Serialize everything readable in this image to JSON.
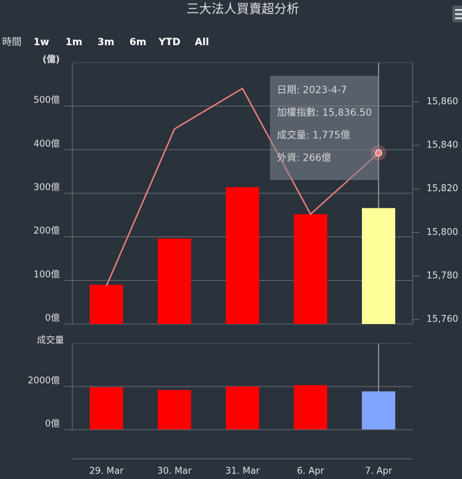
{
  "title": "三大法人買賣超分析",
  "range_selector": {
    "label": "時間",
    "buttons": [
      "1w",
      "1m",
      "3m",
      "6m",
      "YTD",
      "All"
    ]
  },
  "tooltip": {
    "lines": [
      "日期: 2023-4-7",
      "加權指數: 15,836.50",
      "成交量: 1,775億",
      "外資: 266億"
    ]
  },
  "chart_data": {
    "type": "stock",
    "categories": [
      "29. Mar",
      "30. Mar",
      "31. Mar",
      "6. Apr",
      "7. Apr"
    ],
    "panes": [
      {
        "y_title": "(億)",
        "ylim": [
          0,
          600
        ],
        "yticks": [
          {
            "value": 0,
            "label": "0億"
          },
          {
            "value": 100,
            "label": "100億"
          },
          {
            "value": 200,
            "label": "200億"
          },
          {
            "value": 300,
            "label": "300億"
          },
          {
            "value": 400,
            "label": "400億"
          },
          {
            "value": 500,
            "label": "500億"
          }
        ],
        "y2lim": [
          15758,
          15878
        ],
        "y2ticks": [
          {
            "value": 15760,
            "label": "15,760"
          },
          {
            "value": 15780,
            "label": "15,780"
          },
          {
            "value": 15800,
            "label": "15,800"
          },
          {
            "value": 15820,
            "label": "15,820"
          },
          {
            "value": 15840,
            "label": "15,840"
          },
          {
            "value": 15860,
            "label": "15,860"
          }
        ],
        "grid": true,
        "series": [
          {
            "type": "bar",
            "colors": [
              "#ff0000",
              "#ff0000",
              "#ff0000",
              "#ff0000",
              "#ffff99"
            ],
            "values": [
              90,
              196,
              314,
              252,
              266
            ]
          },
          {
            "type": "line",
            "axis": "y2",
            "color": "#f08080",
            "values": [
              15775.4,
              15847.5,
              15866.1,
              15808.4,
              15836.5
            ]
          }
        ]
      },
      {
        "y_title": "成交量",
        "ylim": [
          0,
          4000
        ],
        "yticks": [
          {
            "value": 0,
            "label": "0億"
          },
          {
            "value": 2000,
            "label": "2000億"
          }
        ],
        "grid": true,
        "series": [
          {
            "type": "bar",
            "colors": [
              "#ff0000",
              "#ff0000",
              "#ff0000",
              "#ff0000",
              "#7fa5ff"
            ],
            "values": [
              1968,
              1839,
              2000,
              2065,
              1775
            ]
          }
        ]
      }
    ]
  }
}
